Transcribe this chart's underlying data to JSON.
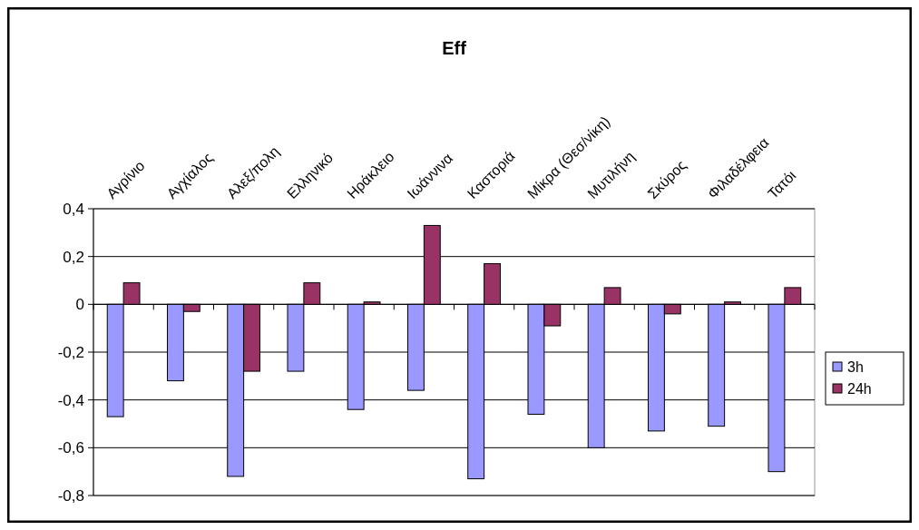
{
  "chart_data": {
    "type": "bar",
    "title": "Eff",
    "categories": [
      "Αγρίνιο",
      "Αγχίαλος",
      "Αλεξ/πολη",
      "Ελληνικό",
      "Ηράκλειο",
      "Ιωάννινα",
      "Καστοριά",
      "Μίκρα (Θεσ/νίκη)",
      "Μυτιλήνη",
      "Σκύρος",
      "Φιλαδέλφεια",
      "Τατόι"
    ],
    "series": [
      {
        "name": "3h",
        "color": "#9999ff",
        "values": [
          -0.47,
          -0.32,
          -0.72,
          -0.28,
          -0.44,
          -0.36,
          -0.73,
          -0.46,
          -0.6,
          -0.53,
          -0.51,
          -0.7
        ]
      },
      {
        "name": "24h",
        "color": "#993366",
        "values": [
          0.09,
          -0.03,
          -0.28,
          0.09,
          0.01,
          0.33,
          0.17,
          -0.09,
          0.07,
          -0.04,
          0.01,
          0.07
        ]
      }
    ],
    "ylim": [
      -0.8,
      0.4
    ],
    "yticks": [
      {
        "value": -0.8,
        "label": "-0,8"
      },
      {
        "value": -0.6,
        "label": "-0,6"
      },
      {
        "value": -0.4,
        "label": "-0,4"
      },
      {
        "value": -0.2,
        "label": "-0,2"
      },
      {
        "value": 0,
        "label": "0"
      },
      {
        "value": 0.2,
        "label": "0,2"
      },
      {
        "value": 0.4,
        "label": "0,4"
      }
    ],
    "grid": "y",
    "legend": "right"
  }
}
